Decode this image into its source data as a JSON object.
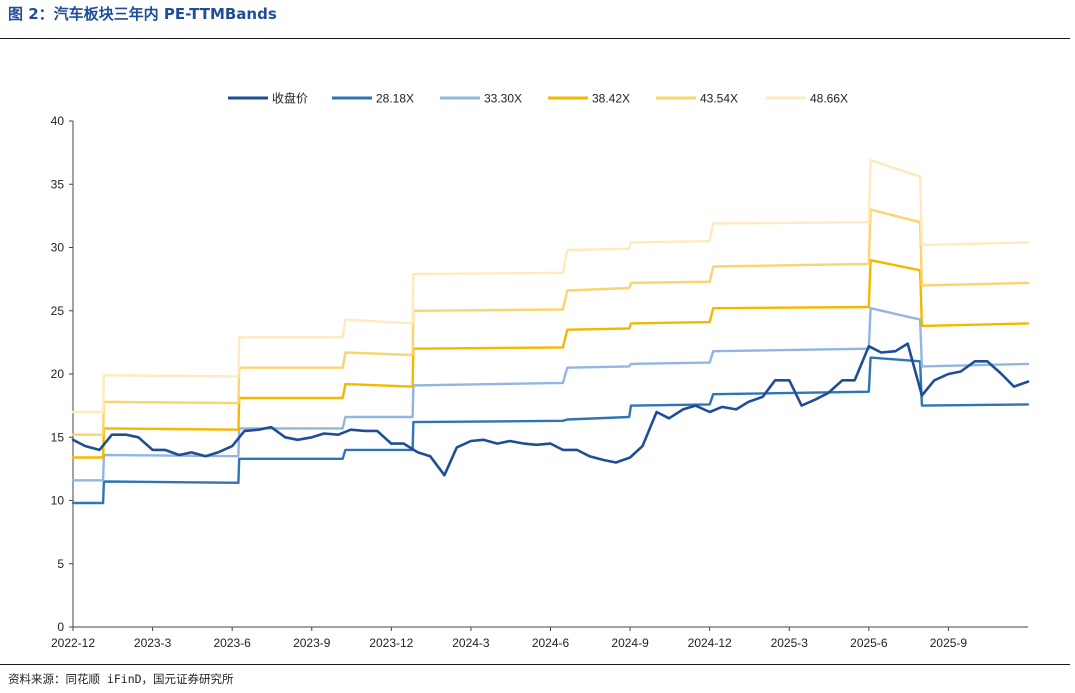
{
  "figure": {
    "title": "图 2：汽车板块三年内 PE-TTMBands",
    "source": "资料来源：同花顺 iFinD，国元证券研究所"
  },
  "chart_data": {
    "type": "line",
    "title": "",
    "xlabel": "",
    "ylabel": "",
    "ylim": [
      0,
      40
    ],
    "yticks": [
      0,
      5,
      10,
      15,
      20,
      25,
      30,
      35,
      40
    ],
    "xlim": [
      "2022-12",
      "2025-12"
    ],
    "xticks": [
      "2022-12",
      "2023-3",
      "2023-6",
      "2023-9",
      "2023-12",
      "2024-3",
      "2024-6",
      "2024-9",
      "2024-12",
      "2025-3",
      "2025-6",
      "2025-9"
    ],
    "grid": false,
    "legend_position": "top",
    "series": [
      {
        "name": "收盘价",
        "color": "#1f4e96",
        "x": [
          "2022-12-01",
          "2022-12-15",
          "2023-01-01",
          "2023-01-15",
          "2023-02-01",
          "2023-02-15",
          "2023-03-01",
          "2023-03-15",
          "2023-04-01",
          "2023-04-15",
          "2023-05-01",
          "2023-05-15",
          "2023-06-01",
          "2023-06-15",
          "2023-07-01",
          "2023-07-15",
          "2023-08-01",
          "2023-08-15",
          "2023-09-01",
          "2023-09-15",
          "2023-10-01",
          "2023-10-15",
          "2023-11-01",
          "2023-11-15",
          "2023-12-01",
          "2023-12-15",
          "2024-01-01",
          "2024-01-15",
          "2024-02-01",
          "2024-02-15",
          "2024-03-01",
          "2024-03-15",
          "2024-04-01",
          "2024-04-15",
          "2024-05-01",
          "2024-05-15",
          "2024-06-01",
          "2024-06-15",
          "2024-07-01",
          "2024-07-15",
          "2024-08-01",
          "2024-08-15",
          "2024-09-01",
          "2024-09-15",
          "2024-10-01",
          "2024-10-15",
          "2024-11-01",
          "2024-11-15",
          "2024-12-01",
          "2024-12-15",
          "2025-01-01",
          "2025-01-15",
          "2025-02-01",
          "2025-02-15",
          "2025-03-01",
          "2025-03-15",
          "2025-04-01",
          "2025-04-15",
          "2025-05-01",
          "2025-05-15",
          "2025-06-01",
          "2025-06-15",
          "2025-07-01",
          "2025-07-15",
          "2025-08-01",
          "2025-08-15",
          "2025-09-01",
          "2025-09-15",
          "2025-10-01",
          "2025-10-15",
          "2025-11-01",
          "2025-11-15",
          "2025-12-01"
        ],
        "values": [
          14.8,
          14.3,
          14.0,
          15.2,
          15.2,
          15.0,
          14.0,
          14.0,
          13.6,
          13.8,
          13.5,
          13.8,
          14.3,
          15.5,
          15.6,
          15.8,
          15.0,
          14.8,
          15.0,
          15.3,
          15.2,
          15.6,
          15.5,
          15.5,
          14.5,
          14.5,
          13.8,
          13.5,
          12.0,
          14.2,
          14.7,
          14.8,
          14.5,
          14.7,
          14.5,
          14.4,
          14.5,
          14.0,
          14.0,
          13.5,
          13.2,
          13.0,
          13.4,
          14.3,
          17.0,
          16.5,
          17.2,
          17.5,
          17.0,
          17.4,
          17.2,
          17.8,
          18.2,
          19.5,
          19.5,
          17.5,
          18.0,
          18.5,
          19.5,
          19.5,
          22.2,
          21.7,
          21.8,
          22.4,
          18.3,
          19.5,
          20.0,
          20.2,
          21.0,
          21.0,
          20.0,
          19.0,
          19.4
        ]
      },
      {
        "name": "28.18X",
        "color": "#2e75b6",
        "x": [
          "2022-12-01",
          "2023-01-05",
          "2023-01-06",
          "2023-06-08",
          "2023-06-09",
          "2023-10-06",
          "2023-10-09",
          "2023-12-25",
          "2023-12-26",
          "2024-06-15",
          "2024-06-20",
          "2024-08-30",
          "2024-09-02",
          "2024-12-01",
          "2024-12-05",
          "2025-06-01",
          "2025-06-03",
          "2025-07-29",
          "2025-08-01",
          "2025-12-01"
        ],
        "values": [
          9.8,
          9.8,
          11.5,
          11.4,
          13.3,
          13.3,
          14.0,
          14.0,
          16.2,
          16.3,
          16.4,
          16.6,
          17.5,
          17.6,
          18.4,
          18.6,
          21.3,
          21.0,
          17.5,
          17.6
        ]
      },
      {
        "name": "33.30X",
        "color": "#92b6e0",
        "x": [
          "2022-12-01",
          "2023-01-05",
          "2023-01-06",
          "2023-06-08",
          "2023-06-09",
          "2023-10-06",
          "2023-10-09",
          "2023-12-25",
          "2023-12-26",
          "2024-06-15",
          "2024-06-20",
          "2024-08-30",
          "2024-09-02",
          "2024-12-01",
          "2024-12-05",
          "2025-06-01",
          "2025-06-03",
          "2025-07-29",
          "2025-08-01",
          "2025-12-01"
        ],
        "values": [
          11.6,
          11.6,
          13.6,
          13.5,
          15.7,
          15.7,
          16.6,
          16.6,
          19.1,
          19.3,
          20.5,
          20.6,
          20.8,
          20.9,
          21.8,
          22.0,
          25.2,
          24.3,
          20.6,
          20.8
        ]
      },
      {
        "name": "38.42X",
        "color": "#f5b800",
        "x": [
          "2022-12-01",
          "2023-01-05",
          "2023-01-06",
          "2023-06-08",
          "2023-06-09",
          "2023-10-06",
          "2023-10-09",
          "2023-12-25",
          "2023-12-26",
          "2024-06-15",
          "2024-06-20",
          "2024-08-30",
          "2024-09-02",
          "2024-12-01",
          "2024-12-05",
          "2025-06-01",
          "2025-06-03",
          "2025-07-29",
          "2025-08-01",
          "2025-12-01"
        ],
        "values": [
          13.4,
          13.4,
          15.7,
          15.6,
          18.1,
          18.1,
          19.2,
          19.0,
          22.0,
          22.1,
          23.5,
          23.6,
          24.0,
          24.1,
          25.2,
          25.3,
          29.0,
          28.2,
          23.8,
          24.0
        ]
      },
      {
        "name": "43.54X",
        "color": "#fad46e",
        "x": [
          "2022-12-01",
          "2023-01-05",
          "2023-01-06",
          "2023-06-08",
          "2023-06-09",
          "2023-10-06",
          "2023-10-09",
          "2023-12-25",
          "2023-12-26",
          "2024-06-15",
          "2024-06-20",
          "2024-08-30",
          "2024-09-02",
          "2024-12-01",
          "2024-12-05",
          "2025-06-01",
          "2025-06-03",
          "2025-07-29",
          "2025-08-01",
          "2025-12-01"
        ],
        "values": [
          15.2,
          15.2,
          17.8,
          17.7,
          20.5,
          20.5,
          21.7,
          21.5,
          25.0,
          25.1,
          26.6,
          26.8,
          27.2,
          27.3,
          28.5,
          28.7,
          33.0,
          32.0,
          27.0,
          27.2
        ]
      },
      {
        "name": "48.66X",
        "color": "#fdebc0",
        "x": [
          "2022-12-01",
          "2023-01-05",
          "2023-01-06",
          "2023-06-08",
          "2023-06-09",
          "2023-10-06",
          "2023-10-09",
          "2023-12-25",
          "2023-12-26",
          "2024-06-15",
          "2024-06-20",
          "2024-08-30",
          "2024-09-02",
          "2024-12-01",
          "2024-12-05",
          "2025-06-01",
          "2025-06-03",
          "2025-07-29",
          "2025-08-01",
          "2025-12-01"
        ],
        "values": [
          17.0,
          17.0,
          19.9,
          19.8,
          22.9,
          22.9,
          24.3,
          24.0,
          27.9,
          28.0,
          29.8,
          29.9,
          30.4,
          30.5,
          31.9,
          32.0,
          36.9,
          35.6,
          30.2,
          30.4
        ]
      }
    ]
  }
}
